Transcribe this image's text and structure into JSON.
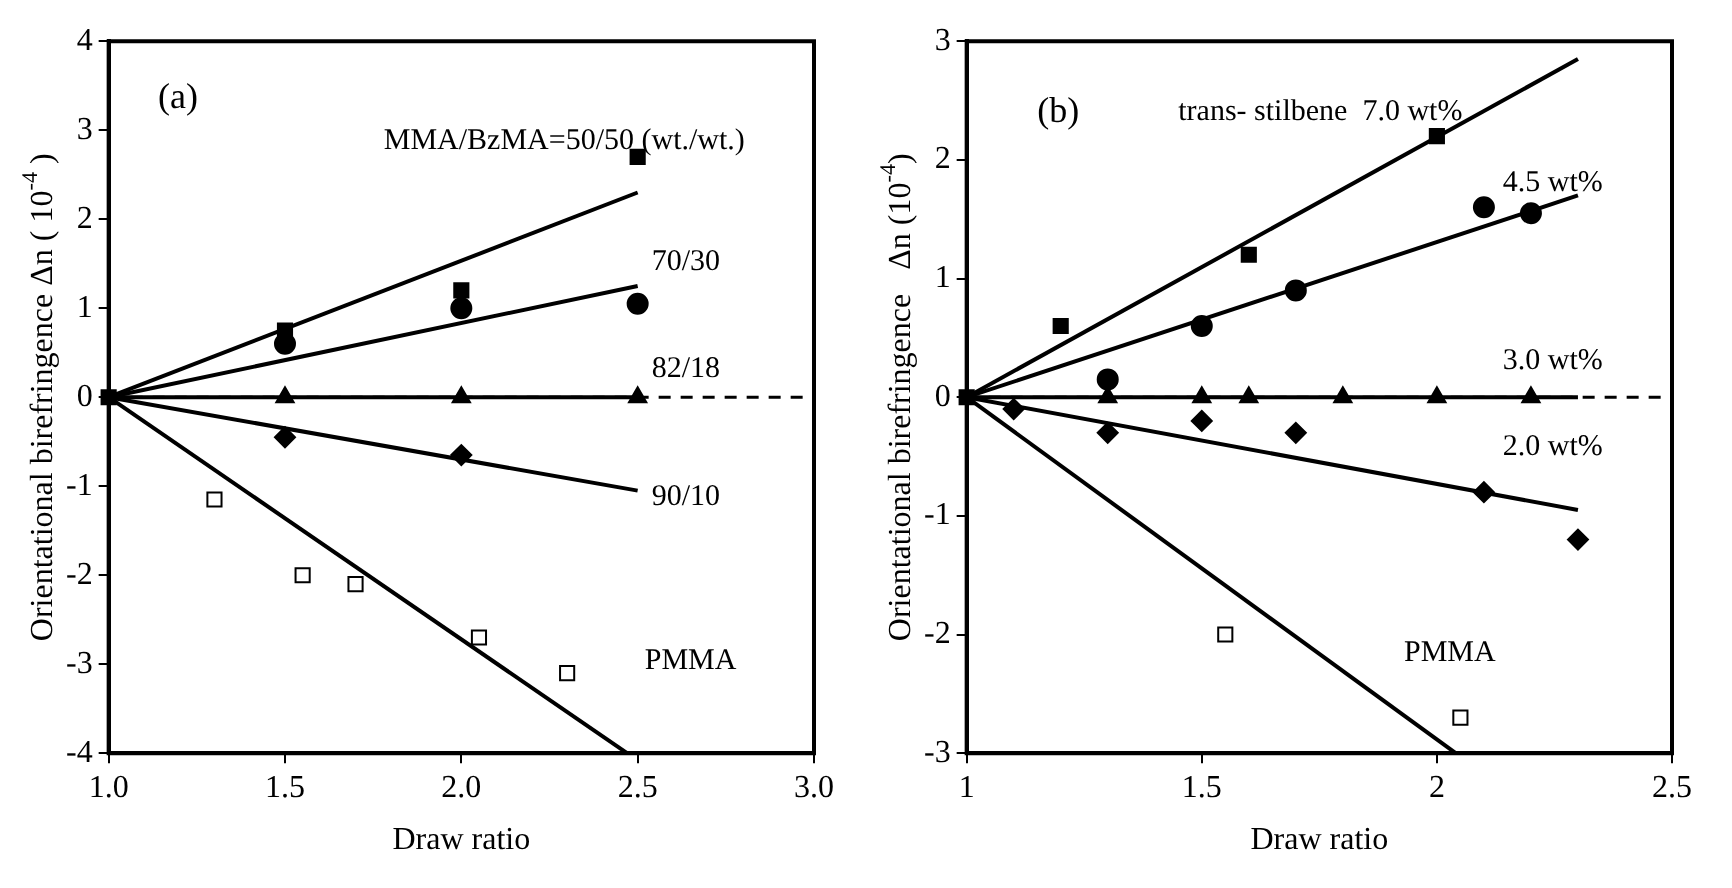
{
  "chart_data": [
    {
      "type": "scatter",
      "xlabel": "Draw ratio",
      "ylabel": "Orientational birefringence Δ$_{}$n ( 10$^{-4}$ )",
      "xlim": [
        1.0,
        3.0
      ],
      "xticks": [
        {
          "value": 1,
          "label": "1.0"
        },
        {
          "value": 1.5,
          "label": "1.5"
        },
        {
          "value": 2,
          "label": "2.0"
        },
        {
          "value": 2.5,
          "label": "2.5"
        },
        {
          "value": 3,
          "label": "3.0"
        }
      ],
      "ylim": [
        -4,
        4
      ],
      "yticks": [
        -4,
        -3,
        -2,
        -1,
        0,
        1,
        2,
        3,
        4
      ],
      "grid": false,
      "legend": false,
      "annotations": [
        "(a)",
        "MMA/BzMA=50/50 (wt./wt.)",
        "70/30",
        "82/18",
        "90/10",
        "PMMA"
      ],
      "ref_lines": [
        {
          "axis": "y",
          "value": 0,
          "label": null,
          "line_style": "dashed",
          "color": "#000000"
        }
      ],
      "series": [
        {
          "marker": "square",
          "color": "#000000",
          "x": [
            1,
            1.5,
            2,
            2.5
          ],
          "values": [
            0,
            0.75,
            1.2,
            2.7
          ]
        },
        {
          "marker": "circle",
          "color": "#000000",
          "x": [
            1.5,
            2,
            2.5
          ],
          "values": [
            0.6,
            1.0,
            1.05
          ]
        },
        {
          "marker": "triangle",
          "color": "#000000",
          "x": [
            1.5,
            2,
            2.5
          ],
          "values": [
            0,
            0,
            0
          ]
        },
        {
          "marker": "diamond",
          "color": "#000000",
          "x": [
            1.5,
            2
          ],
          "values": [
            -0.45,
            -0.65
          ]
        },
        {
          "marker": "square",
          "color": "#ffffff",
          "x": [
            1.3,
            1.55,
            1.7,
            2.05,
            2.3
          ],
          "values": [
            -1.15,
            -2.0,
            -2.1,
            -2.7,
            -3.1
          ]
        },
        {
          "type": "line",
          "marker": "none",
          "color": "#000000",
          "x": [
            1,
            2.5
          ],
          "values": [
            0,
            2.3
          ]
        },
        {
          "type": "line",
          "marker": "none",
          "color": "#000000",
          "x": [
            1,
            2.5
          ],
          "values": [
            0,
            1.25
          ]
        },
        {
          "type": "line",
          "marker": "none",
          "color": "#000000",
          "x": [
            1,
            2.5
          ],
          "values": [
            0,
            0
          ]
        },
        {
          "type": "line",
          "marker": "none",
          "color": "#000000",
          "x": [
            1,
            2.5
          ],
          "values": [
            0,
            -1.05
          ]
        },
        {
          "type": "line",
          "marker": "none",
          "color": "#000000",
          "x": [
            1,
            2.47
          ],
          "values": [
            0,
            -4
          ]
        }
      ]
    },
    {
      "type": "scatter",
      "xlabel": "Draw ratio",
      "ylabel": "Orientational birefringence   Δ$_{}$n (10$^{-4}$)",
      "xlim": [
        1,
        2.5
      ],
      "xticks": [
        1,
        1.5,
        2,
        2.5
      ],
      "ylim": [
        -3,
        3
      ],
      "yticks": [
        -3,
        -2,
        -1,
        0,
        1,
        2,
        3
      ],
      "grid": false,
      "legend": false,
      "annotations": [
        "(b)",
        "trans- stilbene  7.0 wt%",
        "4.5 wt%",
        "3.0 wt%",
        "2.0 wt%",
        "PMMA"
      ],
      "ref_lines": [
        {
          "axis": "y",
          "value": 0,
          "label": null,
          "line_style": "dashed",
          "color": "#000000"
        }
      ],
      "series": [
        {
          "marker": "square",
          "color": "#000000",
          "x": [
            1,
            1.2,
            1.6,
            2
          ],
          "values": [
            0,
            0.6,
            1.2,
            2.2
          ]
        },
        {
          "marker": "circle",
          "color": "#000000",
          "x": [
            1.3,
            1.5,
            1.7,
            2.1,
            2.2
          ],
          "values": [
            0.15,
            0.6,
            0.9,
            1.6,
            1.55
          ]
        },
        {
          "marker": "triangle",
          "color": "#000000",
          "x": [
            1.3,
            1.5,
            1.6,
            1.8,
            2.0,
            2.2
          ],
          "values": [
            0,
            0,
            0,
            0,
            0,
            0
          ]
        },
        {
          "marker": "diamond",
          "color": "#000000",
          "x": [
            1.1,
            1.3,
            1.5,
            1.7,
            2.1,
            2.3
          ],
          "values": [
            -0.1,
            -0.3,
            -0.2,
            -0.3,
            -0.8,
            -1.2
          ]
        },
        {
          "marker": "square",
          "color": "#ffffff",
          "x": [
            1.55,
            2.05
          ],
          "values": [
            -2.0,
            -2.7
          ]
        },
        {
          "type": "line",
          "marker": "none",
          "color": "#000000",
          "x": [
            1,
            2.3
          ],
          "values": [
            0,
            2.85
          ]
        },
        {
          "type": "line",
          "marker": "none",
          "color": "#000000",
          "x": [
            1,
            2.3
          ],
          "values": [
            0,
            1.7
          ]
        },
        {
          "type": "line",
          "marker": "none",
          "color": "#000000",
          "x": [
            1,
            2.3
          ],
          "values": [
            0,
            0
          ]
        },
        {
          "type": "line",
          "marker": "none",
          "color": "#000000",
          "x": [
            1,
            2.3
          ],
          "values": [
            0,
            -0.95
          ]
        },
        {
          "type": "line",
          "marker": "none",
          "color": "#000000",
          "x": [
            1,
            2.04
          ],
          "values": [
            0,
            -3
          ]
        }
      ]
    }
  ]
}
